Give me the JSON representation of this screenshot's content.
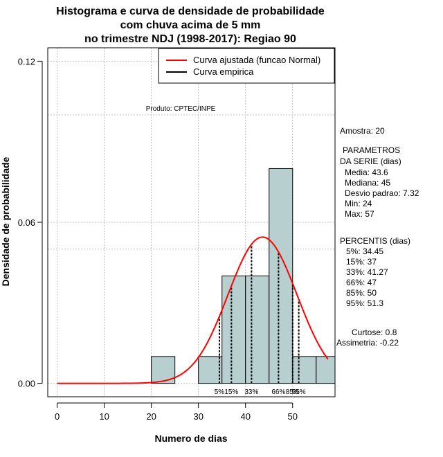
{
  "chart_data": {
    "type": "histogram",
    "title_lines": [
      "Histograma e curva de densidade de probabilidade",
      "com chuva acima de 5 mm",
      "no trimestre NDJ (1998-2017): Regiao 90"
    ],
    "xlabel": "Numero de dias",
    "ylabel": "Densidade de probabilidade",
    "xlim": [
      -2,
      59
    ],
    "ylim": [
      -0.005,
      0.125
    ],
    "x_ticks": [
      0,
      10,
      20,
      30,
      40,
      50
    ],
    "y_ticks": [
      0.0,
      0.06,
      0.12
    ],
    "y_tick_labels": [
      "0.00",
      "0.06",
      "0.12"
    ],
    "grid_x": [
      0,
      10,
      20,
      30,
      40,
      50
    ],
    "grid_y": [
      0.0,
      0.05,
      0.06,
      0.1,
      0.12
    ],
    "bins": [
      {
        "x0": 20,
        "x1": 25,
        "density": 0.01
      },
      {
        "x0": 25,
        "x1": 30,
        "density": 0.0
      },
      {
        "x0": 30,
        "x1": 35,
        "density": 0.01
      },
      {
        "x0": 35,
        "x1": 40,
        "density": 0.04
      },
      {
        "x0": 40,
        "x1": 45,
        "density": 0.04
      },
      {
        "x0": 45,
        "x1": 50,
        "density": 0.08
      },
      {
        "x0": 50,
        "x1": 55,
        "density": 0.01
      },
      {
        "x0": 55,
        "x1": 59,
        "density": 0.01
      }
    ],
    "normal_curve": {
      "mean": 43.6,
      "sd": 7.32,
      "x_from": 0,
      "x_to": 57.5
    },
    "percentile_lines": [
      {
        "value": 34.45,
        "label": "5%"
      },
      {
        "value": 37,
        "label": "15%"
      },
      {
        "value": 41.27,
        "label": "33%"
      },
      {
        "value": 47,
        "label": "66%"
      },
      {
        "value": 50,
        "label": "85%"
      },
      {
        "value": 51.3,
        "label": "95%"
      }
    ],
    "legend": [
      {
        "label": "Curva ajustada (funcao Normal)",
        "color": "#ff0000"
      },
      {
        "label": "Curva empirica",
        "color": "#000000"
      }
    ],
    "colors": {
      "bar_fill": "#b8cfcf",
      "curve": "#ff0000",
      "grid": "#c0c0c0"
    }
  },
  "product_label": "Produto: CPTEC/INPE",
  "stats": {
    "sample": "Amostra: 20",
    "params_title_1": "PARAMETROS",
    "params_title_2": "DA SERIE (dias)",
    "mean": "Media: 43.6",
    "median": "Mediana: 45",
    "sd": "Desvio padrao: 7.32",
    "min": "Min: 24",
    "max": "Max: 57",
    "pct_title": "PERCENTIS (dias)",
    "p5": "5%: 34.45",
    "p15": "15%: 37",
    "p33": "33%: 41.27",
    "p66": "66%: 47",
    "p85": "85%: 50",
    "p95": "95%: 51.3",
    "kurtosis": "Curtose: 0.8",
    "skewness": "Assimetria: -0.22"
  }
}
